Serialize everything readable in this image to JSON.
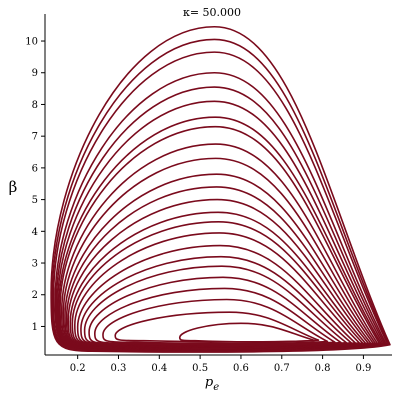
{
  "chart_data": {
    "type": "line",
    "title": "κ= 50.000",
    "xlabel": "p",
    "xlabel_subscript": "e",
    "ylabel": "β",
    "xlim": [
      0.12,
      0.97
    ],
    "ylim": [
      0.1,
      10.6
    ],
    "xticks": [
      0.2,
      0.3,
      0.4,
      0.5,
      0.6,
      0.7,
      0.8,
      0.9
    ],
    "xtick_labels": [
      "0.2",
      "0.3",
      "0.4",
      "0.5",
      "0.6",
      "0.7",
      "0.8",
      "0.9"
    ],
    "yticks": [
      1,
      2,
      3,
      4,
      5,
      6,
      7,
      8,
      9,
      10
    ],
    "ytick_labels": [
      "1",
      "2",
      "3",
      "4",
      "5",
      "6",
      "7",
      "8",
      "9",
      "10"
    ],
    "grid": false,
    "color": "#7a0a1c",
    "loops": [
      {
        "peak_x": 0.535,
        "peak_y": 10.45,
        "left_x": 0.135,
        "right_x": 0.965,
        "base_y": 0.22
      },
      {
        "peak_x": 0.535,
        "peak_y": 10.05,
        "left_x": 0.138,
        "right_x": 0.962,
        "base_y": 0.24
      },
      {
        "peak_x": 0.535,
        "peak_y": 9.65,
        "left_x": 0.141,
        "right_x": 0.959,
        "base_y": 0.26
      },
      {
        "peak_x": 0.535,
        "peak_y": 9.0,
        "left_x": 0.145,
        "right_x": 0.955,
        "base_y": 0.28
      },
      {
        "peak_x": 0.535,
        "peak_y": 8.55,
        "left_x": 0.148,
        "right_x": 0.951,
        "base_y": 0.3
      },
      {
        "peak_x": 0.535,
        "peak_y": 8.1,
        "left_x": 0.151,
        "right_x": 0.947,
        "base_y": 0.31
      },
      {
        "peak_x": 0.537,
        "peak_y": 7.6,
        "left_x": 0.154,
        "right_x": 0.943,
        "base_y": 0.32
      },
      {
        "peak_x": 0.537,
        "peak_y": 7.3,
        "left_x": 0.157,
        "right_x": 0.939,
        "base_y": 0.33
      },
      {
        "peak_x": 0.538,
        "peak_y": 6.75,
        "left_x": 0.161,
        "right_x": 0.934,
        "base_y": 0.34
      },
      {
        "peak_x": 0.538,
        "peak_y": 6.3,
        "left_x": 0.165,
        "right_x": 0.929,
        "base_y": 0.35
      },
      {
        "peak_x": 0.54,
        "peak_y": 5.8,
        "left_x": 0.169,
        "right_x": 0.924,
        "base_y": 0.36
      },
      {
        "peak_x": 0.54,
        "peak_y": 5.4,
        "left_x": 0.173,
        "right_x": 0.918,
        "base_y": 0.37
      },
      {
        "peak_x": 0.542,
        "peak_y": 5.0,
        "left_x": 0.177,
        "right_x": 0.912,
        "base_y": 0.38
      },
      {
        "peak_x": 0.544,
        "peak_y": 4.6,
        "left_x": 0.182,
        "right_x": 0.905,
        "base_y": 0.39
      },
      {
        "peak_x": 0.545,
        "peak_y": 4.3,
        "left_x": 0.187,
        "right_x": 0.898,
        "base_y": 0.4
      },
      {
        "peak_x": 0.547,
        "peak_y": 3.95,
        "left_x": 0.193,
        "right_x": 0.89,
        "base_y": 0.41
      },
      {
        "peak_x": 0.549,
        "peak_y": 3.55,
        "left_x": 0.2,
        "right_x": 0.88,
        "base_y": 0.42
      },
      {
        "peak_x": 0.551,
        "peak_y": 3.2,
        "left_x": 0.208,
        "right_x": 0.87,
        "base_y": 0.43
      },
      {
        "peak_x": 0.553,
        "peak_y": 2.9,
        "left_x": 0.217,
        "right_x": 0.858,
        "base_y": 0.44
      },
      {
        "peak_x": 0.556,
        "peak_y": 2.55,
        "left_x": 0.228,
        "right_x": 0.845,
        "base_y": 0.45
      },
      {
        "peak_x": 0.56,
        "peak_y": 2.2,
        "left_x": 0.242,
        "right_x": 0.83,
        "base_y": 0.47
      },
      {
        "peak_x": 0.565,
        "peak_y": 1.85,
        "left_x": 0.262,
        "right_x": 0.812,
        "base_y": 0.5
      },
      {
        "peak_x": 0.572,
        "peak_y": 1.45,
        "left_x": 0.292,
        "right_x": 0.79,
        "base_y": 0.55
      },
      {
        "peak_x": 0.6,
        "peak_y": 1.1,
        "left_x": 0.45,
        "right_x": 0.78,
        "base_y": 0.55
      }
    ]
  }
}
